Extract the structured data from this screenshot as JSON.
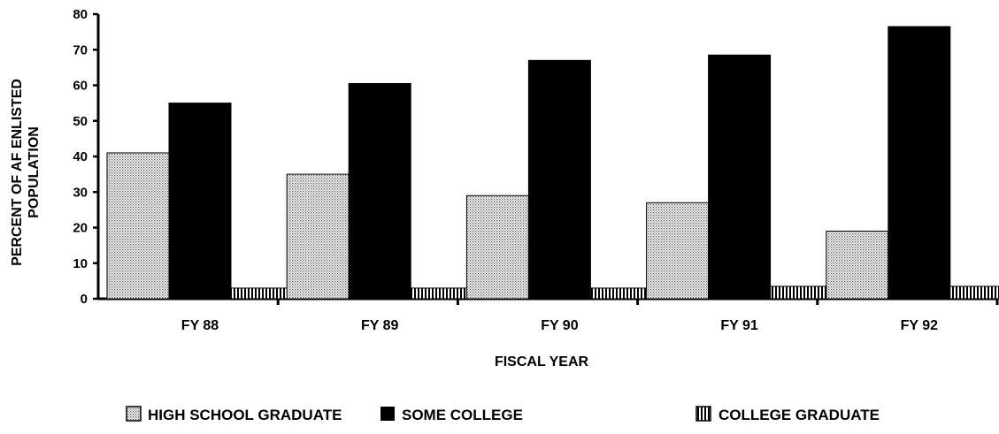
{
  "chart_data": {
    "type": "bar",
    "title": "",
    "xlabel": "FISCAL YEAR",
    "ylabel_lines": [
      "PERCENT OF AF ENLISTED",
      "POPULATION"
    ],
    "ylim": [
      0,
      80
    ],
    "yticks": [
      0,
      10,
      20,
      30,
      40,
      50,
      60,
      70,
      80
    ],
    "categories": [
      "FY 88",
      "FY 89",
      "FY 90",
      "FY 91",
      "FY 92"
    ],
    "series": [
      {
        "name": "HIGH SCHOOL GRADUATE",
        "pattern": "dots",
        "values": [
          41,
          35,
          29,
          27,
          19
        ]
      },
      {
        "name": "SOME COLLEGE",
        "pattern": "solid",
        "values": [
          55,
          60.5,
          67,
          68.5,
          76.5
        ]
      },
      {
        "name": "COLLEGE GRADUATE",
        "pattern": "vertical-stripes",
        "values": [
          3,
          3,
          3,
          3.5,
          3.5
        ]
      }
    ],
    "grid": false,
    "legend_position": "bottom"
  }
}
